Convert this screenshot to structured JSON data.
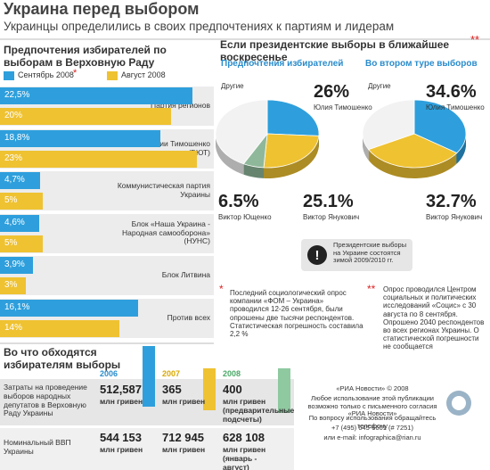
{
  "header": {
    "title": "Украина перед выбором",
    "subtitle": "Украинцы определились в своих предпочтениях к партиям и лидерам"
  },
  "chart_data": [
    {
      "type": "bar",
      "orientation": "horizontal",
      "title": "Предпочтения избирателей по выборам в Верховную Раду",
      "categories": [
        "Партия регионов",
        "Блок Юлии Тимошенко (БЮТ)",
        "Коммунистическая партия Украины",
        "Блок «Наша Украина - Народная самооборона» (НУНС)",
        "Блок Литвина",
        "Против всех"
      ],
      "series": [
        {
          "name": "Сентябрь 2008",
          "color": "#2e9fdc",
          "values": [
            22.5,
            18.8,
            4.7,
            4.6,
            3.9,
            16.1
          ],
          "value_labels": [
            "22,5%",
            "18,8%",
            "4,7%",
            "4,6%",
            "3,9%",
            "16,1%"
          ]
        },
        {
          "name": "Август 2008",
          "color": "#efc232",
          "values": [
            20,
            23,
            5,
            5,
            3,
            14
          ],
          "value_labels": [
            "20%",
            "23%",
            "5%",
            "5%",
            "3%",
            "14%"
          ]
        }
      ]
    },
    {
      "type": "pie",
      "title": "Предпочтения избирателей",
      "categories": [
        "Юлия Тимошенко",
        "Виктор Янукович",
        "Виктор Ющенко",
        "Другие"
      ],
      "values": [
        26,
        25.1,
        6.5,
        42.4
      ],
      "value_labels": [
        "26%",
        "25.1%",
        "6.5%",
        null
      ],
      "colors": [
        "#2e9fdc",
        "#efc232",
        "#8fb89a",
        "#f2f2f2"
      ]
    },
    {
      "type": "pie",
      "title": "Во втором туре выборов",
      "categories": [
        "Юлия Тимошенко",
        "Виктор Янукович",
        "Другие"
      ],
      "values": [
        34.6,
        32.7,
        32.7
      ],
      "value_labels": [
        "34.6%",
        "32.7%",
        null
      ],
      "colors": [
        "#2e9fdc",
        "#efc232",
        "#f2f2f2"
      ]
    }
  ],
  "section_title": "Если президентские выборы в ближайшее воскресенье",
  "notice": "Президентские выборы на Украине состоятся зимой 2009/2010 гг.",
  "footnotes": [
    {
      "mark": "*",
      "text": "Последний социологический опрос компании «ФОМ – Украина» проводился 12-26 сентября, были опрошены две тысячи респондентов. Статистическая погрешность составила 2,2 %"
    },
    {
      "mark": "**",
      "text": "Опрос проводился Центром социальных и политических исследований «Социс» с 30 августа по 8 сентября. Опрошено 2040 респондентов во всех регионах Украины. О статистической погрешности не сообщается"
    }
  ],
  "table": {
    "title": "Во что обходятся избирателям выборы",
    "columns": [
      "2006",
      "2007",
      "2008"
    ],
    "rows": [
      {
        "label": "Затраты на проведение выборов народных депутатов в Верховную Раду Украины",
        "cells": [
          [
            "512,587",
            "млн гривен"
          ],
          [
            "365",
            "млн гривен"
          ],
          [
            "400",
            "млн гривен (предварительные подсчеты)"
          ]
        ]
      },
      {
        "label": "Номинальный ВВП Украины",
        "cells": [
          [
            "544 153",
            "млн гривен"
          ],
          [
            "712 945",
            "млн гривен"
          ],
          [
            "628 108",
            "млн гривен (январь - август)"
          ]
        ]
      }
    ]
  },
  "credits": [
    "«РИА Новости» © 2008",
    "Любое использование этой публикации возможно только с письменного согласия «РИА Новости»",
    "По вопросу использования обращайтесь телефону",
    "+7 (495) 645-6601 (# 7251)",
    "или e-mail: infographica@rian.ru"
  ]
}
